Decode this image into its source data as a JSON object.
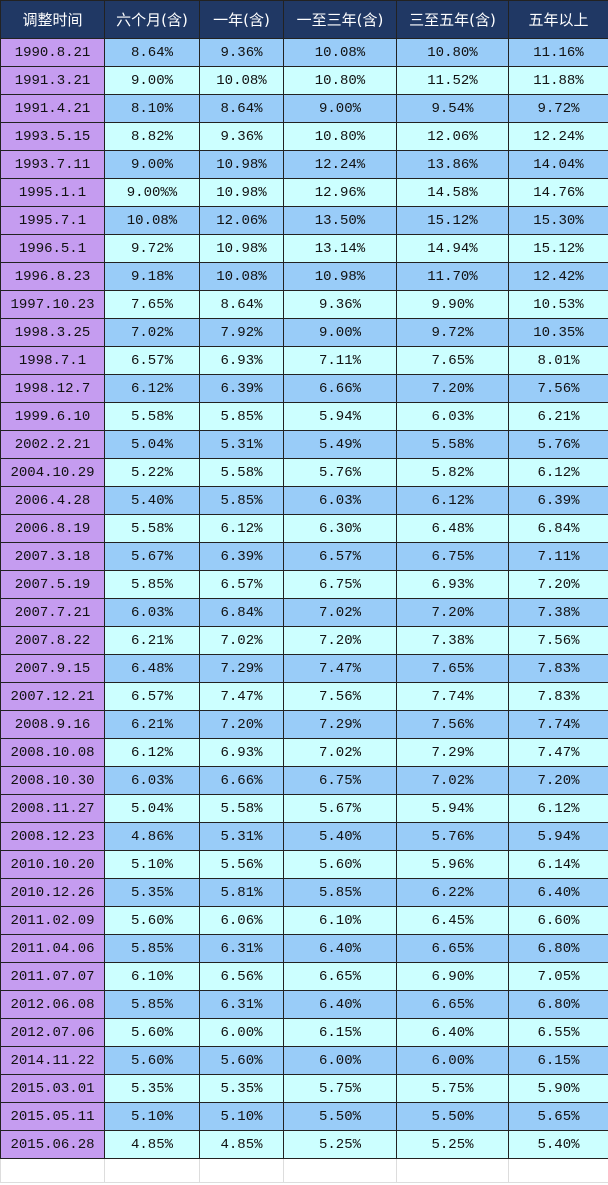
{
  "table": {
    "header": [
      "调整时间",
      "六个月(含)",
      "一年(含)",
      "一至三年(含)",
      "三至五年(含)",
      "五年以上"
    ],
    "rows": [
      [
        "1990.8.21",
        "8.64%",
        "9.36%",
        "10.08%",
        "10.80%",
        "11.16%"
      ],
      [
        "1991.3.21",
        "9.00%",
        "10.08%",
        "10.80%",
        "11.52%",
        "11.88%"
      ],
      [
        "1991.4.21",
        "8.10%",
        "8.64%",
        "9.00%",
        "9.54%",
        "9.72%"
      ],
      [
        "1993.5.15",
        "8.82%",
        "9.36%",
        "10.80%",
        "12.06%",
        "12.24%"
      ],
      [
        "1993.7.11",
        "9.00%",
        "10.98%",
        "12.24%",
        "13.86%",
        "14.04%"
      ],
      [
        "1995.1.1",
        "9.00%%",
        "10.98%",
        "12.96%",
        "14.58%",
        "14.76%"
      ],
      [
        "1995.7.1",
        "10.08%",
        "12.06%",
        "13.50%",
        "15.12%",
        "15.30%"
      ],
      [
        "1996.5.1",
        "9.72%",
        "10.98%",
        "13.14%",
        "14.94%",
        "15.12%"
      ],
      [
        "1996.8.23",
        "9.18%",
        "10.08%",
        "10.98%",
        "11.70%",
        "12.42%"
      ],
      [
        "1997.10.23",
        "7.65%",
        "8.64%",
        "9.36%",
        "9.90%",
        "10.53%"
      ],
      [
        "1998.3.25",
        "7.02%",
        "7.92%",
        "9.00%",
        "9.72%",
        "10.35%"
      ],
      [
        "1998.7.1",
        "6.57%",
        "6.93%",
        "7.11%",
        "7.65%",
        "8.01%"
      ],
      [
        "1998.12.7",
        "6.12%",
        "6.39%",
        "6.66%",
        "7.20%",
        "7.56%"
      ],
      [
        "1999.6.10",
        "5.58%",
        "5.85%",
        "5.94%",
        "6.03%",
        "6.21%"
      ],
      [
        "2002.2.21",
        "5.04%",
        "5.31%",
        "5.49%",
        "5.58%",
        "5.76%"
      ],
      [
        "2004.10.29",
        "5.22%",
        "5.58%",
        "5.76%",
        "5.82%",
        "6.12%"
      ],
      [
        "2006.4.28",
        "5.40%",
        "5.85%",
        "6.03%",
        "6.12%",
        "6.39%"
      ],
      [
        "2006.8.19",
        "5.58%",
        "6.12%",
        "6.30%",
        "6.48%",
        "6.84%"
      ],
      [
        "2007.3.18",
        "5.67%",
        "6.39%",
        "6.57%",
        "6.75%",
        "7.11%"
      ],
      [
        "2007.5.19",
        "5.85%",
        "6.57%",
        "6.75%",
        "6.93%",
        "7.20%"
      ],
      [
        "2007.7.21",
        "6.03%",
        "6.84%",
        "7.02%",
        "7.20%",
        "7.38%"
      ],
      [
        "2007.8.22",
        "6.21%",
        "7.02%",
        "7.20%",
        "7.38%",
        "7.56%"
      ],
      [
        "2007.9.15",
        "6.48%",
        "7.29%",
        "7.47%",
        "7.65%",
        "7.83%"
      ],
      [
        "2007.12.21",
        "6.57%",
        "7.47%",
        "7.56%",
        "7.74%",
        "7.83%"
      ],
      [
        "2008.9.16",
        "6.21%",
        "7.20%",
        "7.29%",
        "7.56%",
        "7.74%"
      ],
      [
        "2008.10.08",
        "6.12%",
        "6.93%",
        "7.02%",
        "7.29%",
        "7.47%"
      ],
      [
        "2008.10.30",
        "6.03%",
        "6.66%",
        "6.75%",
        "7.02%",
        "7.20%"
      ],
      [
        "2008.11.27",
        "5.04%",
        "5.58%",
        "5.67%",
        "5.94%",
        "6.12%"
      ],
      [
        "2008.12.23",
        "4.86%",
        "5.31%",
        "5.40%",
        "5.76%",
        "5.94%"
      ],
      [
        "2010.10.20",
        "5.10%",
        "5.56%",
        "5.60%",
        "5.96%",
        "6.14%"
      ],
      [
        "2010.12.26",
        "5.35%",
        "5.81%",
        "5.85%",
        "6.22%",
        "6.40%"
      ],
      [
        "2011.02.09",
        "5.60%",
        "6.06%",
        "6.10%",
        "6.45%",
        "6.60%"
      ],
      [
        "2011.04.06",
        "5.85%",
        "6.31%",
        "6.40%",
        "6.65%",
        "6.80%"
      ],
      [
        "2011.07.07",
        "6.10%",
        "6.56%",
        "6.65%",
        "6.90%",
        "7.05%"
      ],
      [
        "2012.06.08",
        "5.85%",
        "6.31%",
        "6.40%",
        "6.65%",
        "6.80%"
      ],
      [
        "2012.07.06",
        "5.60%",
        "6.00%",
        "6.15%",
        "6.40%",
        "6.55%"
      ],
      [
        "2014.11.22",
        "5.60%",
        "5.60%",
        "6.00%",
        "6.00%",
        "6.15%"
      ],
      [
        "2015.03.01",
        "5.35%",
        "5.35%",
        "5.75%",
        "5.75%",
        "5.90%"
      ],
      [
        "2015.05.11",
        "5.10%",
        "5.10%",
        "5.50%",
        "5.50%",
        "5.65%"
      ],
      [
        "2015.06.28",
        "4.85%",
        "4.85%",
        "5.25%",
        "5.25%",
        "5.40%"
      ]
    ]
  }
}
